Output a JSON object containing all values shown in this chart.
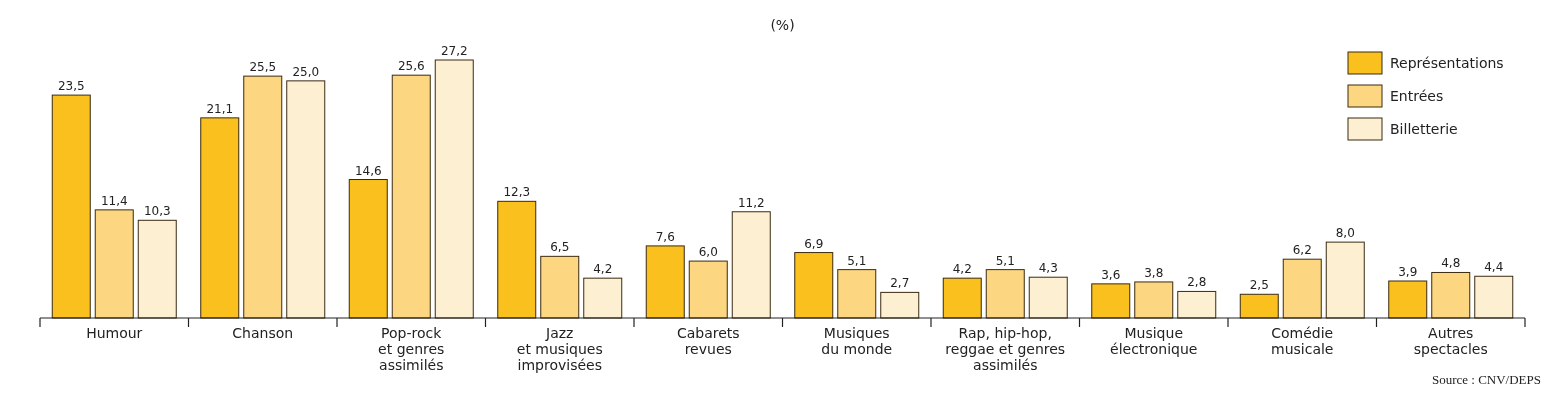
{
  "chart_data": {
    "type": "bar",
    "title": "(%)",
    "categories": [
      "Humour",
      "Chanson",
      "Pop-rock\net genres\nassimilés",
      "Jazz\net musiques\nimprovisées",
      "Cabarets\nrevues",
      "Musiques\ndu monde",
      "Rap, hip-hop,\nreggae et genres\nassimilés",
      "Musique\nélectronique",
      "Comédie\nmusicale",
      "Autres\nspectacles"
    ],
    "series": [
      {
        "name": "Représentations",
        "color": "#f9c01e",
        "values": [
          23.5,
          21.1,
          14.6,
          12.3,
          7.6,
          6.9,
          4.2,
          3.6,
          2.5,
          3.9
        ],
        "value_labels": [
          "23,5",
          "21,1",
          "14,6",
          "12,3",
          "7,6",
          "6,9",
          "4,2",
          "3,6",
          "2,5",
          "3,9"
        ]
      },
      {
        "name": "Entrées",
        "color": "#fcd680",
        "values": [
          11.4,
          25.5,
          25.6,
          6.5,
          6.0,
          5.1,
          5.1,
          3.8,
          6.2,
          4.8
        ],
        "value_labels": [
          "11,4",
          "25,5",
          "25,6",
          "6,5",
          "6,0",
          "5,1",
          "5,1",
          "3,8",
          "6,2",
          "4,8"
        ]
      },
      {
        "name": "Billetterie",
        "color": "#fdf0d2",
        "values": [
          10.3,
          25.0,
          27.2,
          4.2,
          11.2,
          2.7,
          4.3,
          2.8,
          8.0,
          4.4
        ],
        "value_labels": [
          "10,3",
          "25,0",
          "27,2",
          "4,2",
          "11,2",
          "2,7",
          "4,3",
          "2,8",
          "8,0",
          "4,4"
        ]
      }
    ],
    "legend": "top right",
    "annotations": [
      "Source : CNV/DEPS"
    ]
  }
}
